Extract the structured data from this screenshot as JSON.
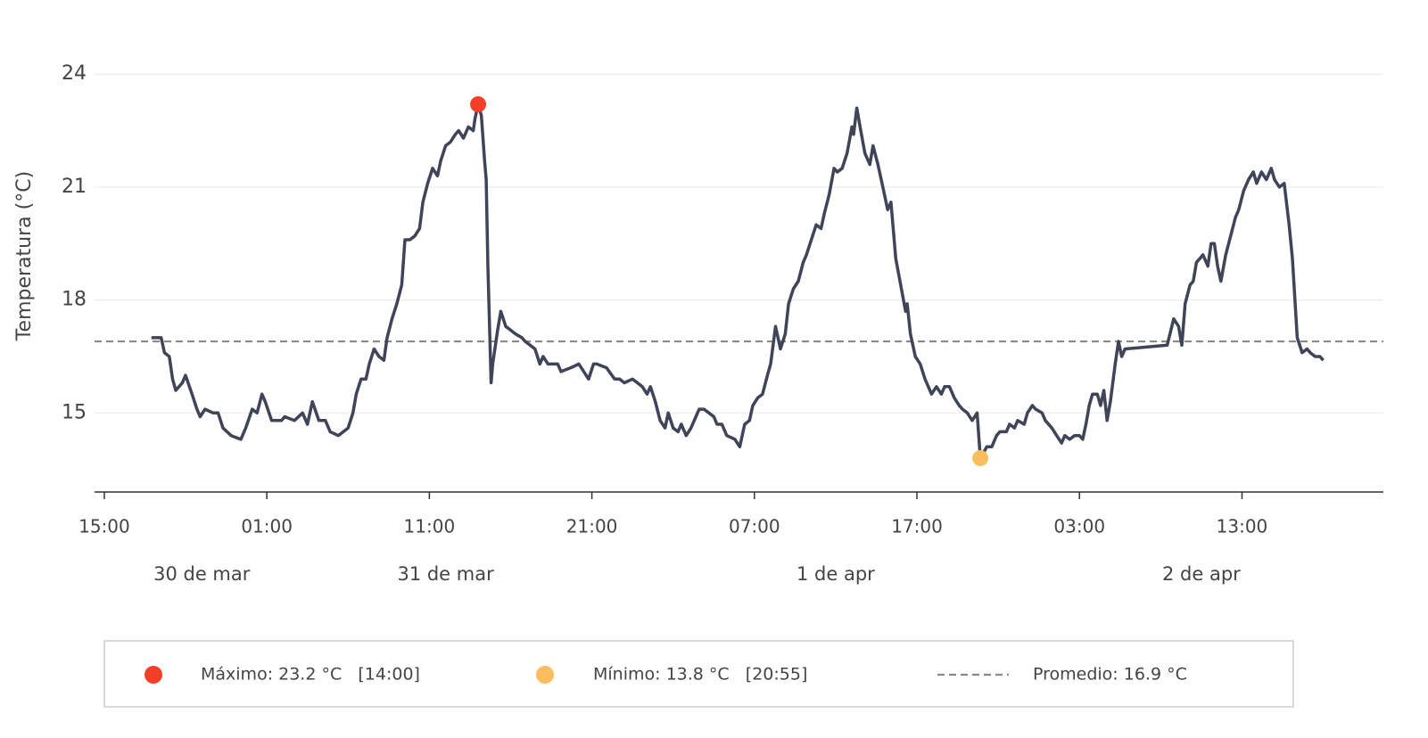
{
  "chart_data": {
    "type": "line",
    "y_label": "Temperatura (°C)",
    "color": "#3f4458",
    "x": [
      2.9,
      3.5,
      3.7,
      4.0,
      4.2,
      4.4,
      4.8,
      5.0,
      5.4,
      5.7,
      5.9,
      6.2,
      6.7,
      7.0,
      7.3,
      7.8,
      8.4,
      8.7,
      9.1,
      9.4,
      9.7,
      9.9,
      10.3,
      10.9,
      11.1,
      11.7,
      12.2,
      12.5,
      12.8,
      13.2,
      13.6,
      13.9,
      14.4,
      15.0,
      15.3,
      15.5,
      15.8,
      16.1,
      16.3,
      16.6,
      16.9,
      17.2,
      17.4,
      17.7,
      18.0,
      18.3,
      18.5,
      18.8,
      19.1,
      19.4,
      19.6,
      19.9,
      20.2,
      20.5,
      20.7,
      21.0,
      21.3,
      21.6,
      21.8,
      22.1,
      22.4,
      22.7,
      22.8,
      23.0,
      23.2,
      23.4,
      23.5,
      23.6,
      23.8,
      23.9,
      24.2,
      24.4,
      24.7,
      25.0,
      25.3,
      25.7,
      25.9,
      26.2,
      26.5,
      26.8,
      27.0,
      27.3,
      27.9,
      28.1,
      28.7,
      29.2,
      29.8,
      30.1,
      30.3,
      30.9,
      31.4,
      31.7,
      32.0,
      32.5,
      32.8,
      33.1,
      33.4,
      33.6,
      33.9,
      34.2,
      34.5,
      34.7,
      35.0,
      35.3,
      35.5,
      35.8,
      36.1,
      36.4,
      36.6,
      36.9,
      37.2,
      37.5,
      37.7,
      38.0,
      38.3,
      38.8,
      39.1,
      39.4,
      39.7,
      39.9,
      40.2,
      40.5,
      40.8,
      41.0,
      41.3,
      41.6,
      41.9,
      42.1,
      42.4,
      42.7,
      43.0,
      43.2,
      43.8,
      44.1,
      44.3,
      44.6,
      44.9,
      45.1,
      45.4,
      45.7,
      46.0,
      46.1,
      46.3,
      46.5,
      46.8,
      47.1,
      47.3,
      47.6,
      47.9,
      48.2,
      48.4,
      48.7,
      49.0,
      49.3,
      49.4,
      49.6,
      49.9,
      50.2,
      50.5,
      50.9,
      51.2,
      51.5,
      51.7,
      52.0,
      52.3,
      52.6,
      52.8,
      53.1,
      53.4,
      53.7,
      53.9,
      54.3,
      54.6,
      54.9,
      55.1,
      55.5,
      55.7,
      56.0,
      56.2,
      56.6,
      56.8,
      57.1,
      57.3,
      57.7,
      57.9,
      58.3,
      58.6,
      58.9,
      59.1,
      59.4,
      59.7,
      60.0,
      60.2,
      60.4,
      60.6,
      60.8,
      61.1,
      61.3,
      61.5,
      61.7,
      61.9,
      62.2,
      62.4,
      62.6,
      62.8,
      65.4,
      65.8,
      66.1,
      66.3,
      66.5,
      66.8,
      67.0,
      67.2,
      67.4,
      67.6,
      67.9,
      68.1,
      68.3,
      68.5,
      68.7,
      69.0,
      69.3,
      69.6,
      69.8,
      70.1,
      70.4,
      70.7,
      70.9,
      71.2,
      71.5,
      71.8,
      72.0,
      72.3,
      72.6,
      72.9,
      73.1,
      73.4,
      73.7,
      74.0,
      74.2,
      74.5,
      74.8,
      75.0
    ],
    "values": [
      17.0,
      17.0,
      16.6,
      16.5,
      15.9,
      15.6,
      15.8,
      16.0,
      15.5,
      15.1,
      14.9,
      15.1,
      15.0,
      15.0,
      14.6,
      14.4,
      14.3,
      14.6,
      15.1,
      15.0,
      15.5,
      15.3,
      14.8,
      14.8,
      14.9,
      14.8,
      15.0,
      14.7,
      15.3,
      14.8,
      14.8,
      14.5,
      14.4,
      14.6,
      15.0,
      15.5,
      15.9,
      15.9,
      16.3,
      16.7,
      16.5,
      16.4,
      17.0,
      17.5,
      17.9,
      18.4,
      19.6,
      19.6,
      19.7,
      19.9,
      20.6,
      21.1,
      21.5,
      21.3,
      21.7,
      22.1,
      22.2,
      22.4,
      22.5,
      22.3,
      22.6,
      22.5,
      22.8,
      23.2,
      22.9,
      21.7,
      21.2,
      18.9,
      15.8,
      16.3,
      17.2,
      17.7,
      17.3,
      17.2,
      17.1,
      17.0,
      16.9,
      16.8,
      16.7,
      16.3,
      16.5,
      16.3,
      16.3,
      16.1,
      16.2,
      16.3,
      15.9,
      16.3,
      16.3,
      16.2,
      15.9,
      15.9,
      15.8,
      15.9,
      15.8,
      15.7,
      15.5,
      15.7,
      15.3,
      14.8,
      14.6,
      15.0,
      14.6,
      14.5,
      14.7,
      14.4,
      14.6,
      14.9,
      15.1,
      15.1,
      15.0,
      14.9,
      14.7,
      14.7,
      14.4,
      14.3,
      14.1,
      14.7,
      14.8,
      15.2,
      15.4,
      15.5,
      16.0,
      16.3,
      17.3,
      16.7,
      17.1,
      17.9,
      18.3,
      18.5,
      19.0,
      19.2,
      20.0,
      19.9,
      20.3,
      20.8,
      21.5,
      21.4,
      21.5,
      21.9,
      22.6,
      22.4,
      23.1,
      22.6,
      21.9,
      21.6,
      22.1,
      21.6,
      21.0,
      20.4,
      20.6,
      19.1,
      18.4,
      17.7,
      17.9,
      17.1,
      16.5,
      16.3,
      15.9,
      15.5,
      15.7,
      15.5,
      15.7,
      15.7,
      15.4,
      15.2,
      15.1,
      15.0,
      14.8,
      15.0,
      13.8,
      14.1,
      14.1,
      14.4,
      14.5,
      14.5,
      14.7,
      14.6,
      14.8,
      14.7,
      15.0,
      15.2,
      15.1,
      15.0,
      14.8,
      14.6,
      14.4,
      14.2,
      14.4,
      14.3,
      14.4,
      14.4,
      14.3,
      14.7,
      15.2,
      15.5,
      15.5,
      15.2,
      15.6,
      14.8,
      15.3,
      16.3,
      16.9,
      16.5,
      16.7,
      16.8,
      17.5,
      17.3,
      16.8,
      17.9,
      18.4,
      18.5,
      19.0,
      19.1,
      19.2,
      18.9,
      19.5,
      19.5,
      18.9,
      18.5,
      19.2,
      19.7,
      20.2,
      20.4,
      20.9,
      21.2,
      21.4,
      21.1,
      21.4,
      21.2,
      21.5,
      21.2,
      21.0,
      21.1,
      20.0,
      19.1,
      17.0,
      16.6,
      16.7,
      16.6,
      16.5,
      16.5,
      16.4
    ],
    "xlim": [
      -0.6,
      78.7
    ],
    "ylim": [
      12.9,
      25
    ],
    "yticks": [
      15,
      18,
      21,
      24
    ],
    "xticks": [
      {
        "value": 0,
        "label": "15:00"
      },
      {
        "value": 10,
        "label": "01:00"
      },
      {
        "value": 20,
        "label": "11:00"
      },
      {
        "value": 30,
        "label": "21:00"
      },
      {
        "value": 40,
        "label": "07:00"
      },
      {
        "value": 50,
        "label": "17:00"
      },
      {
        "value": 60,
        "label": "03:00"
      },
      {
        "value": 70,
        "label": "13:00"
      }
    ],
    "date_ticks": [
      {
        "value": 6,
        "label": "30 de mar"
      },
      {
        "value": 21,
        "label": "31 de mar"
      },
      {
        "value": 45,
        "label": "1 de apr"
      },
      {
        "value": 67.5,
        "label": "2 de apr"
      }
    ],
    "grid": true,
    "markers": [
      {
        "name": "Máximo: 23.2 °C   [14:00]",
        "x": 23.0,
        "y": 23.2,
        "color": "#f43f28"
      },
      {
        "name": "Mínimo: 13.8 °C   [20:55]",
        "x": 53.9,
        "y": 13.8,
        "color": "#fbbd5e"
      }
    ],
    "mean_line": {
      "name": "Promedio: 16.9 °C",
      "value": 16.9,
      "color": "#8a8a8a"
    }
  }
}
